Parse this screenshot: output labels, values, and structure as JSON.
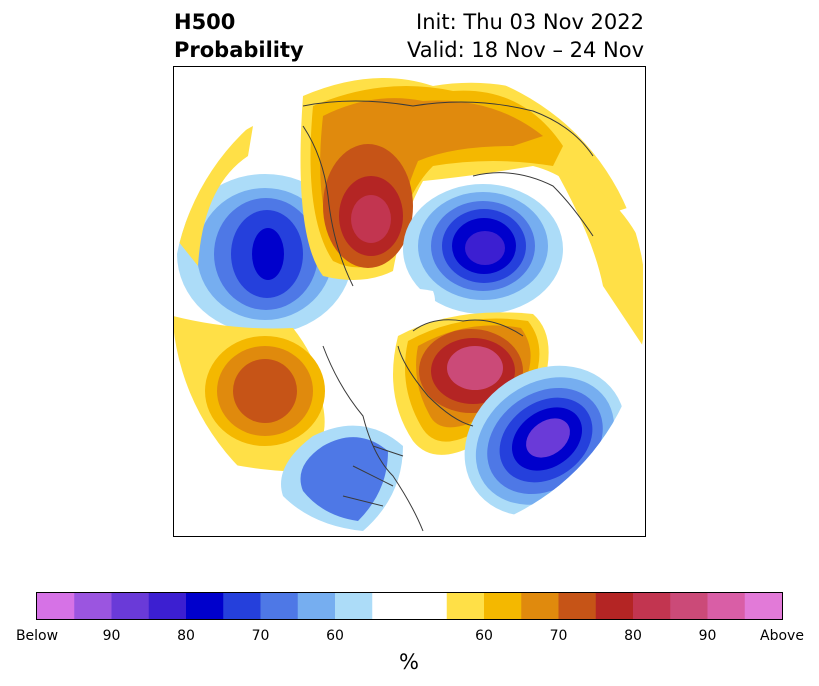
{
  "title": {
    "left_line1": "H500",
    "left_line2": "Probability",
    "right_line1": "Init: Thu 03 Nov 2022",
    "right_line2": "Valid: 18 Nov – 24 Nov"
  },
  "colorbar": {
    "unit": "%",
    "tick_labels": [
      "Below",
      "90",
      "80",
      "70",
      "60",
      "60",
      "70",
      "80",
      "90",
      "Above"
    ],
    "colors": [
      "#d672e6",
      "#9b55e0",
      "#6a3ad8",
      "#3c1fd1",
      "#0000cc",
      "#2540dc",
      "#4e78e6",
      "#76aef0",
      "#acdcf8",
      "#ffffff",
      "#ffffff",
      "#ffe047",
      "#f4b800",
      "#e08a0d",
      "#c65417",
      "#b42524",
      "#c23550",
      "#cb4a78",
      "#d95ea6",
      "#e27ad8"
    ]
  },
  "map": {
    "projection": "north-polar-stereographic",
    "anomaly_centers": [
      {
        "sign": "below",
        "max_category": "80",
        "region": "Gulf of Alaska"
      },
      {
        "sign": "above",
        "max_category": "90",
        "region": "East Siberia"
      },
      {
        "sign": "below",
        "max_category": "Below",
        "region": "Kara Sea / Arctic"
      },
      {
        "sign": "above",
        "max_category": "Above",
        "region": "Greenland / Hudson Bay"
      },
      {
        "sign": "below",
        "max_category": "Below",
        "region": "North Atlantic"
      },
      {
        "sign": "above",
        "max_category": "70",
        "region": "Central Pacific"
      }
    ]
  }
}
